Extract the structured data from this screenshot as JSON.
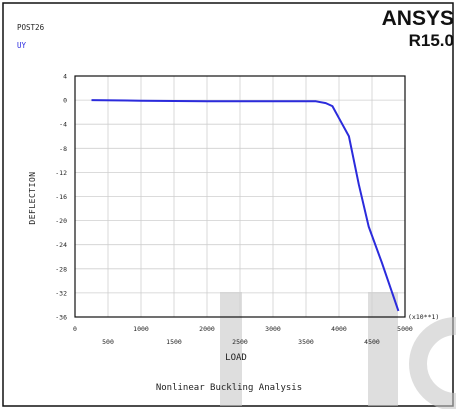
{
  "header": {
    "brand": "ANSYS",
    "version": "R15.0",
    "post_label": "POST26",
    "variable_label": "UY"
  },
  "colors": {
    "curve": "#2b2bdc",
    "frame": "#111111",
    "grid": "#cfcfcf",
    "watermark": "#c8c8c8"
  },
  "chart_data": {
    "type": "line",
    "title": "",
    "xlabel": "LOAD",
    "ylabel": "DEFLECTION",
    "footer": "Nonlinear Buckling Analysis",
    "x_multiplier": "(x10**1)",
    "xlim": [
      0,
      5000
    ],
    "ylim": [
      -36,
      4
    ],
    "x_ticks_upper": [
      "0",
      "1000",
      "2000",
      "3000",
      "4000",
      "5000"
    ],
    "x_ticks_lower": [
      "500",
      "1500",
      "2500",
      "3500",
      "4500"
    ],
    "y_ticks": [
      "4",
      "0",
      "-4",
      "-8",
      "-12",
      "-16",
      "-20",
      "-24",
      "-28",
      "-32",
      "-36"
    ],
    "grid": true,
    "series": [
      {
        "x": [
          250,
          1000,
          2000,
          3000,
          3650,
          3800,
          3900,
          4000,
          4150,
          4300,
          4450,
          4650,
          4900
        ],
        "y": [
          0.0,
          -0.1,
          -0.2,
          -0.2,
          -0.2,
          -0.5,
          -1.0,
          -3.0,
          -6.0,
          -14.0,
          -21.0,
          -27.0,
          -35.0
        ]
      }
    ]
  }
}
